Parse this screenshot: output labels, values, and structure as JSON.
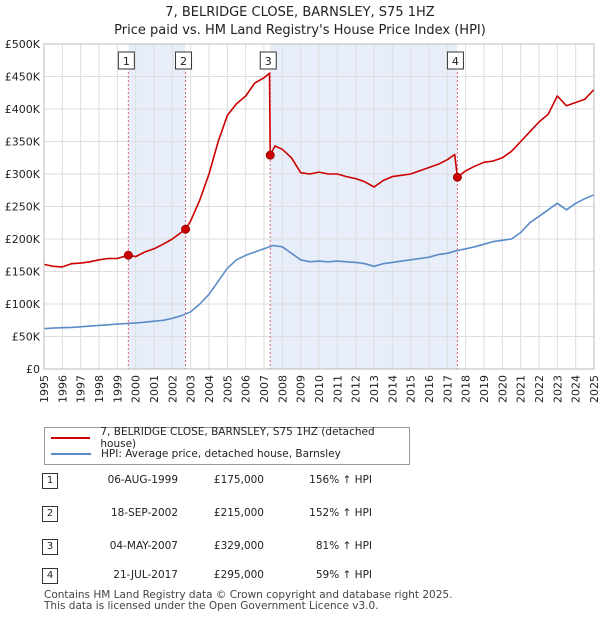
{
  "title": {
    "line1": "7, BELRIDGE CLOSE, BARNSLEY, S75 1HZ",
    "line2": "Price paid vs. HM Land Registry's House Price Index (HPI)"
  },
  "colors": {
    "property": "#cc0000",
    "hpi": "#5b8cc8",
    "shade": "#e8eef9",
    "marker_line": "#e06080",
    "grid": "#dddddd"
  },
  "legend": {
    "property_label": "7, BELRIDGE CLOSE, BARNSLEY, S75 1HZ (detached house)",
    "hpi_label": "HPI: Average price, detached house, Barnsley"
  },
  "transactions": [
    {
      "id": "1",
      "date": "06-AUG-1999",
      "price": "£175,000",
      "hpi_change": "156% ↑ HPI"
    },
    {
      "id": "2",
      "date": "18-SEP-2002",
      "price": "£215,000",
      "hpi_change": "152% ↑ HPI"
    },
    {
      "id": "3",
      "date": "04-MAY-2007",
      "price": "£329,000",
      "hpi_change": "81% ↑ HPI"
    },
    {
      "id": "4",
      "date": "21-JUL-2017",
      "price": "£295,000",
      "hpi_change": "59% ↑ HPI"
    }
  ],
  "footer": {
    "line1": "Contains HM Land Registry data © Crown copyright and database right 2025.",
    "line2": "This data is licensed under the Open Government Licence v3.0."
  },
  "chart_data": {
    "type": "line",
    "title": "7, BELRIDGE CLOSE, BARNSLEY, S75 1HZ — Price paid vs. HM Land Registry's House Price Index (HPI)",
    "xlabel": "",
    "ylabel": "",
    "xlim": [
      1995,
      2025
    ],
    "ylim": [
      0,
      500000
    ],
    "x_ticks": [
      1995,
      1996,
      1997,
      1998,
      1999,
      2000,
      2001,
      2002,
      2003,
      2004,
      2005,
      2006,
      2007,
      2008,
      2009,
      2010,
      2011,
      2012,
      2013,
      2014,
      2015,
      2016,
      2017,
      2018,
      2019,
      2020,
      2021,
      2022,
      2023,
      2024,
      2025
    ],
    "x_tick_labels": [
      "1995",
      "1996",
      "1997",
      "1998",
      "1999",
      "2000",
      "2001",
      "2002",
      "2003",
      "2004",
      "2005",
      "2006",
      "2007",
      "2008",
      "2009",
      "2010",
      "2011",
      "2012",
      "2013",
      "2014",
      "2015",
      "2016",
      "2017",
      "2018",
      "2019",
      "2020",
      "2021",
      "2022",
      "2023",
      "2024",
      "2025"
    ],
    "y_ticks": [
      0,
      50000,
      100000,
      150000,
      200000,
      250000,
      300000,
      350000,
      400000,
      450000,
      500000
    ],
    "y_tick_labels": [
      "£0",
      "£50K",
      "£100K",
      "£150K",
      "£200K",
      "£250K",
      "£300K",
      "£350K",
      "£400K",
      "£450K",
      "£500K"
    ],
    "grid": true,
    "shaded_ranges": [
      [
        1999.6,
        2002.72
      ],
      [
        2007.34,
        2017.55
      ]
    ],
    "series": [
      {
        "name": "7, BELRIDGE CLOSE, BARNSLEY, S75 1HZ (detached house)",
        "color": "#cc0000",
        "x": [
          1995.0,
          1995.5,
          1996.0,
          1996.5,
          1997.0,
          1997.5,
          1998.0,
          1998.5,
          1999.0,
          1999.6,
          2000.0,
          2000.5,
          2001.0,
          2001.5,
          2002.0,
          2002.72,
          2003.0,
          2003.5,
          2004.0,
          2004.5,
          2005.0,
          2005.5,
          2006.0,
          2006.5,
          2007.0,
          2007.3,
          2007.34,
          2007.6,
          2008.0,
          2008.5,
          2009.0,
          2009.5,
          2010.0,
          2010.5,
          2011.0,
          2011.5,
          2012.0,
          2012.5,
          2013.0,
          2013.5,
          2014.0,
          2014.5,
          2015.0,
          2015.5,
          2016.0,
          2016.5,
          2017.0,
          2017.4,
          2017.55,
          2018.0,
          2018.5,
          2019.0,
          2019.5,
          2020.0,
          2020.5,
          2021.0,
          2021.5,
          2022.0,
          2022.5,
          2023.0,
          2023.5,
          2024.0,
          2024.5,
          2025.0
        ],
        "values": [
          161000,
          158000,
          157000,
          162000,
          163000,
          165000,
          168000,
          170000,
          170000,
          175000,
          173000,
          180000,
          185000,
          192000,
          200000,
          215000,
          228000,
          260000,
          300000,
          350000,
          390000,
          408000,
          420000,
          440000,
          448000,
          455000,
          329000,
          343000,
          338000,
          325000,
          302000,
          300000,
          303000,
          300000,
          300000,
          296000,
          293000,
          288000,
          280000,
          290000,
          296000,
          298000,
          300000,
          305000,
          310000,
          315000,
          322000,
          330000,
          295000,
          305000,
          312000,
          318000,
          320000,
          325000,
          335000,
          350000,
          365000,
          380000,
          392000,
          420000,
          405000,
          410000,
          415000,
          430000
        ]
      },
      {
        "name": "HPI: Average price, detached house, Barnsley",
        "color": "#5b8cc8",
        "x": [
          1995.0,
          1995.5,
          1996.0,
          1996.5,
          1997.0,
          1997.5,
          1998.0,
          1998.5,
          1999.0,
          1999.5,
          2000.0,
          2000.5,
          2001.0,
          2001.5,
          2002.0,
          2002.5,
          2003.0,
          2003.5,
          2004.0,
          2004.5,
          2005.0,
          2005.5,
          2006.0,
          2006.5,
          2007.0,
          2007.5,
          2008.0,
          2008.5,
          2009.0,
          2009.5,
          2010.0,
          2010.5,
          2011.0,
          2011.5,
          2012.0,
          2012.5,
          2013.0,
          2013.5,
          2014.0,
          2014.5,
          2015.0,
          2015.5,
          2016.0,
          2016.5,
          2017.0,
          2017.5,
          2018.0,
          2018.5,
          2019.0,
          2019.5,
          2020.0,
          2020.5,
          2021.0,
          2021.5,
          2022.0,
          2022.5,
          2023.0,
          2023.5,
          2024.0,
          2024.5,
          2025.0
        ],
        "values": [
          62000,
          63000,
          63500,
          64000,
          65000,
          66000,
          67000,
          68000,
          69000,
          70000,
          71000,
          72000,
          73500,
          75000,
          78000,
          82000,
          88000,
          100000,
          115000,
          135000,
          155000,
          168000,
          175000,
          180000,
          185000,
          190000,
          188000,
          178000,
          168000,
          165000,
          166000,
          165000,
          166000,
          165000,
          164000,
          162000,
          158000,
          162000,
          164000,
          166000,
          168000,
          170000,
          172000,
          176000,
          178000,
          182000,
          185000,
          188000,
          192000,
          196000,
          198000,
          200000,
          210000,
          225000,
          235000,
          245000,
          255000,
          245000,
          255000,
          262000,
          268000
        ]
      }
    ],
    "markers": [
      {
        "label": "1",
        "x": 1999.6,
        "y": 175000
      },
      {
        "label": "2",
        "x": 2002.72,
        "y": 215000
      },
      {
        "label": "3",
        "x": 2007.34,
        "y": 329000
      },
      {
        "label": "4",
        "x": 2017.55,
        "y": 295000
      }
    ]
  }
}
